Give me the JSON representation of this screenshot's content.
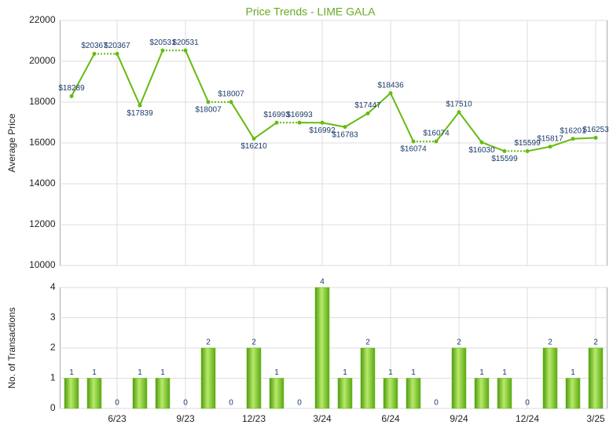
{
  "chart_data": [
    {
      "type": "line",
      "title": "Price Trends - LIME GALA",
      "ylabel": "Average Price",
      "categories": [
        null,
        null,
        "6/23",
        null,
        null,
        "9/23",
        null,
        null,
        "12/23",
        null,
        null,
        "3/24",
        null,
        null,
        "6/24",
        null,
        null,
        "9/24",
        null,
        null,
        "12/24",
        null,
        null,
        "3/25"
      ],
      "values": [
        18289,
        20367,
        20367,
        17839,
        20531,
        20531,
        18007,
        18007,
        16210,
        16993,
        16993,
        16992,
        16783,
        17447,
        18436,
        16074,
        16074,
        17510,
        16030,
        15599,
        15599,
        15817,
        16201,
        16253
      ],
      "value_labels": [
        "$18289",
        "$20367",
        "$20367",
        "$17839",
        "$20531",
        "$20531",
        "$18007",
        "$18007",
        "$16210",
        "$16993",
        "$16993",
        "$16992",
        "$16783",
        "$17447",
        "$18436",
        "$16074",
        "$16074",
        "$17510",
        "$16030",
        "$15599",
        "$15599",
        "$15817",
        "$16201",
        "$16253"
      ],
      "color": "#66bb11",
      "ylim": [
        10000,
        22000
      ],
      "yticks": [
        10000,
        12000,
        14000,
        16000,
        18000,
        20000,
        22000
      ],
      "grid": true
    },
    {
      "type": "bar",
      "ylabel": "No. of Transactions",
      "categories": [
        null,
        null,
        "6/23",
        null,
        null,
        "9/23",
        null,
        null,
        "12/23",
        null,
        null,
        "3/24",
        null,
        null,
        "6/24",
        null,
        null,
        "9/24",
        null,
        null,
        "12/24",
        null,
        null,
        "3/25"
      ],
      "values": [
        1,
        1,
        0,
        1,
        1,
        0,
        2,
        0,
        2,
        1,
        0,
        4,
        1,
        2,
        1,
        1,
        0,
        2,
        1,
        1,
        0,
        2,
        1,
        2
      ],
      "color": "#66bb11",
      "ylim": [
        0,
        4
      ],
      "yticks": [
        0,
        1,
        2,
        3,
        4
      ],
      "grid": true
    }
  ]
}
